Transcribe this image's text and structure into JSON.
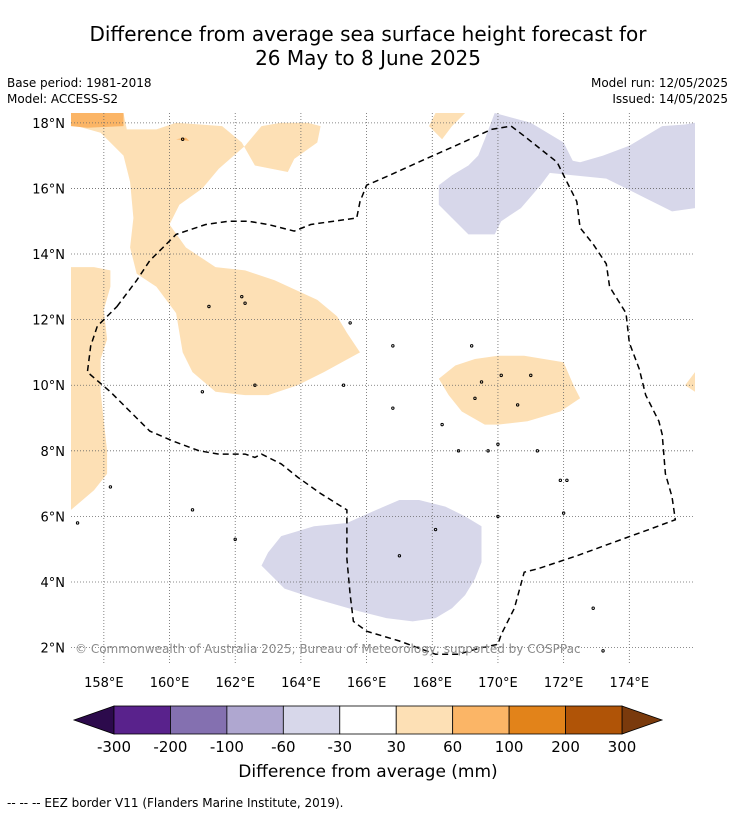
{
  "title_line1": "Difference from average sea surface height forecast for",
  "title_line2": "26 May to 8 June 2025",
  "base_period": "Base period: 1981-2018",
  "model": "Model: ACCESS-S2",
  "model_run": "Model run: 12/05/2025",
  "issued": "Issued: 14/05/2025",
  "copyright": "© Commonwealth of Australia 2025, Bureau of Meteorology; supported by COSPPac",
  "footnote": "--  --  -- EEZ border V11 (Flanders Marine Institute, 2019).",
  "colorbar_label": "Difference from average (mm)",
  "chart_data": {
    "type": "heatmap",
    "xlim": [
      157.0,
      176.0
    ],
    "ylim": [
      1.5,
      18.3
    ],
    "x_ticks": [
      158,
      160,
      162,
      164,
      166,
      168,
      170,
      172,
      174
    ],
    "x_tick_labels": [
      "158°E",
      "160°E",
      "162°E",
      "164°E",
      "166°E",
      "168°E",
      "170°E",
      "172°E",
      "174°E"
    ],
    "y_ticks": [
      2,
      4,
      6,
      8,
      10,
      12,
      14,
      16,
      18
    ],
    "y_tick_labels": [
      "2°N",
      "4°N",
      "6°N",
      "8°N",
      "10°N",
      "12°N",
      "14°N",
      "16°N",
      "18°N"
    ],
    "grid": true,
    "colorbar": {
      "tick_labels": [
        "-300",
        "-200",
        "-100",
        "-60",
        "-30",
        "30",
        "60",
        "100",
        "200",
        "300"
      ],
      "colors": [
        "#59228c",
        "#8470b0",
        "#afa7d0",
        "#d7d7ea",
        "#ffffff",
        "#fde0b5",
        "#fbb566",
        "#e2831a",
        "#b05407"
      ],
      "under_color": "#2c0a4c",
      "over_color": "#7a3a0c"
    },
    "regions": [
      {
        "category": "30 to 60",
        "color": "#fde0b5",
        "points": [
          [
            157.0,
            17.95
          ],
          [
            157.9,
            17.7
          ],
          [
            158.6,
            17.0
          ],
          [
            158.8,
            16.2
          ],
          [
            158.9,
            15.1
          ],
          [
            158.8,
            14.2
          ],
          [
            159.0,
            13.4
          ],
          [
            159.6,
            13.0
          ],
          [
            160.2,
            12.2
          ],
          [
            160.4,
            11.0
          ],
          [
            160.7,
            10.4
          ],
          [
            161.4,
            9.8
          ],
          [
            162.3,
            9.7
          ],
          [
            163.0,
            9.7
          ],
          [
            163.9,
            10.0
          ],
          [
            164.7,
            10.4
          ],
          [
            165.8,
            11.0
          ],
          [
            165.4,
            11.6
          ],
          [
            165.1,
            12.1
          ],
          [
            164.5,
            12.6
          ],
          [
            163.2,
            13.2
          ],
          [
            162.3,
            13.5
          ],
          [
            161.4,
            13.6
          ],
          [
            160.5,
            14.2
          ],
          [
            160.0,
            14.9
          ],
          [
            160.3,
            15.5
          ],
          [
            161.0,
            16.0
          ],
          [
            161.5,
            16.6
          ],
          [
            162.3,
            17.3
          ],
          [
            162.8,
            17.9
          ],
          [
            163.4,
            18.0
          ],
          [
            164.2,
            18.0
          ],
          [
            164.6,
            17.9
          ],
          [
            164.5,
            17.4
          ],
          [
            163.8,
            16.9
          ],
          [
            163.6,
            16.5
          ],
          [
            162.6,
            16.7
          ],
          [
            162.2,
            17.4
          ],
          [
            161.6,
            17.9
          ],
          [
            160.2,
            18.0
          ],
          [
            159.6,
            17.8
          ],
          [
            158.7,
            17.8
          ],
          [
            158.6,
            18.3
          ],
          [
            157.0,
            18.3
          ]
        ]
      },
      {
        "category": "30 to 60",
        "color": "#fde0b5",
        "points": [
          [
            157.0,
            13.6
          ],
          [
            157.7,
            13.6
          ],
          [
            158.2,
            13.5
          ],
          [
            158.2,
            13.0
          ],
          [
            158.0,
            12.3
          ],
          [
            158.1,
            11.4
          ],
          [
            157.9,
            10.8
          ],
          [
            157.9,
            9.8
          ],
          [
            158.0,
            8.9
          ],
          [
            158.1,
            8.0
          ],
          [
            158.1,
            7.3
          ],
          [
            157.7,
            6.8
          ],
          [
            157.0,
            6.2
          ]
        ]
      },
      {
        "category": "30 to 60",
        "color": "#fde0b5",
        "points": [
          [
            168.2,
            10.2
          ],
          [
            168.7,
            10.6
          ],
          [
            169.3,
            10.8
          ],
          [
            170.0,
            10.9
          ],
          [
            170.8,
            10.9
          ],
          [
            172.0,
            10.7
          ],
          [
            172.3,
            10.0
          ],
          [
            172.5,
            9.6
          ],
          [
            171.9,
            9.2
          ],
          [
            170.9,
            8.9
          ],
          [
            170.0,
            8.8
          ],
          [
            169.6,
            8.8
          ],
          [
            168.9,
            9.2
          ],
          [
            168.5,
            9.7
          ],
          [
            168.2,
            10.2
          ]
        ]
      },
      {
        "category": "30 to 60",
        "color": "#fde0b5",
        "points": [
          [
            168.1,
            18.3
          ],
          [
            169.0,
            18.3
          ],
          [
            168.6,
            17.9
          ],
          [
            168.3,
            17.5
          ],
          [
            167.9,
            17.9
          ],
          [
            168.1,
            18.3
          ]
        ]
      },
      {
        "category": "30 to 60",
        "color": "#fde0b5",
        "points": [
          [
            176.0,
            10.4
          ],
          [
            176.0,
            9.8
          ],
          [
            175.7,
            10.0
          ],
          [
            176.0,
            10.4
          ]
        ]
      },
      {
        "category": "60 to 100",
        "color": "#fbb566",
        "points": [
          [
            157.0,
            18.3
          ],
          [
            158.6,
            18.3
          ],
          [
            158.6,
            17.9
          ],
          [
            157.5,
            17.85
          ],
          [
            157.0,
            17.9
          ]
        ]
      },
      {
        "category": "60 to 100",
        "color": "#fbb566",
        "points": [
          [
            160.2,
            17.5
          ],
          [
            160.6,
            17.45
          ],
          [
            160.5,
            17.55
          ],
          [
            160.2,
            17.5
          ]
        ]
      },
      {
        "category": "-60 to -30",
        "color": "#d7d7ea",
        "points": [
          [
            169.9,
            18.3
          ],
          [
            176.0,
            18.3
          ],
          [
            176.0,
            18.0
          ],
          [
            175.7,
            17.95
          ],
          [
            175.0,
            17.9
          ],
          [
            174.0,
            17.3
          ],
          [
            173.2,
            17.0
          ],
          [
            172.5,
            16.8
          ],
          [
            172.0,
            16.9
          ],
          [
            171.5,
            17.2
          ],
          [
            170.9,
            16.8
          ],
          [
            171.3,
            16.5
          ],
          [
            173.3,
            16.3
          ],
          [
            173.9,
            16.0
          ],
          [
            174.5,
            15.7
          ],
          [
            175.3,
            15.3
          ],
          [
            176.0,
            15.4
          ],
          [
            176.0,
            18.3
          ]
        ]
      },
      {
        "category": "-60 to -30",
        "color": "#d7d7ea",
        "points": [
          [
            169.9,
            18.3
          ],
          [
            169.6,
            17.5
          ],
          [
            169.4,
            17.0
          ],
          [
            169.1,
            16.7
          ],
          [
            168.6,
            16.4
          ],
          [
            168.2,
            16.1
          ],
          [
            168.2,
            15.5
          ],
          [
            168.6,
            15.1
          ],
          [
            169.1,
            14.6
          ],
          [
            169.9,
            14.6
          ],
          [
            170.1,
            15.0
          ],
          [
            170.7,
            15.4
          ],
          [
            171.3,
            16.1
          ],
          [
            171.6,
            16.5
          ],
          [
            172.3,
            16.8
          ],
          [
            172.0,
            17.4
          ],
          [
            171.0,
            18.0
          ],
          [
            169.9,
            18.3
          ]
        ]
      },
      {
        "category": "-60 to -30",
        "color": "#d7d7ea",
        "points": [
          [
            163.4,
            5.4
          ],
          [
            164.4,
            5.7
          ],
          [
            165.4,
            5.8
          ],
          [
            166.3,
            6.2
          ],
          [
            167.0,
            6.5
          ],
          [
            167.6,
            6.5
          ],
          [
            168.4,
            6.3
          ],
          [
            169.0,
            6.0
          ],
          [
            169.5,
            5.7
          ],
          [
            169.5,
            4.6
          ],
          [
            169.3,
            4.1
          ],
          [
            169.0,
            3.6
          ],
          [
            168.6,
            3.2
          ],
          [
            168.1,
            2.9
          ],
          [
            167.4,
            2.8
          ],
          [
            166.6,
            2.9
          ],
          [
            165.8,
            3.1
          ],
          [
            164.4,
            3.5
          ],
          [
            163.5,
            3.8
          ],
          [
            163.1,
            4.2
          ],
          [
            162.8,
            4.5
          ],
          [
            163.0,
            4.9
          ],
          [
            163.4,
            5.4
          ]
        ]
      }
    ],
    "eez_border": [
      [
        158.4,
        12.4
      ],
      [
        159.0,
        13.2
      ],
      [
        159.4,
        13.8
      ],
      [
        159.8,
        14.2
      ],
      [
        160.2,
        14.6
      ],
      [
        161.1,
        14.9
      ],
      [
        161.8,
        15.0
      ],
      [
        162.4,
        15.0
      ],
      [
        163.0,
        14.9
      ],
      [
        163.8,
        14.7
      ],
      [
        164.3,
        14.9
      ],
      [
        165.0,
        15.0
      ],
      [
        165.7,
        15.1
      ],
      [
        165.8,
        15.6
      ],
      [
        166.0,
        16.1
      ],
      [
        166.7,
        16.4
      ],
      [
        167.8,
        16.9
      ],
      [
        168.7,
        17.3
      ],
      [
        169.8,
        17.8
      ],
      [
        170.4,
        17.9
      ],
      [
        170.8,
        17.6
      ],
      [
        171.3,
        17.2
      ],
      [
        171.8,
        16.8
      ],
      [
        172.1,
        16.2
      ],
      [
        172.4,
        15.6
      ],
      [
        172.5,
        14.8
      ],
      [
        172.9,
        14.3
      ],
      [
        173.3,
        13.7
      ],
      [
        173.4,
        13.0
      ],
      [
        173.9,
        12.2
      ],
      [
        174.0,
        11.3
      ],
      [
        174.3,
        10.5
      ],
      [
        174.5,
        9.7
      ],
      [
        174.9,
        8.9
      ],
      [
        175.0,
        8.5
      ],
      [
        175.1,
        7.3
      ],
      [
        175.3,
        6.6
      ],
      [
        175.4,
        5.9
      ],
      [
        174.6,
        5.6
      ],
      [
        173.5,
        5.2
      ],
      [
        172.4,
        4.8
      ],
      [
        171.2,
        4.4
      ],
      [
        170.8,
        4.3
      ],
      [
        170.5,
        3.2
      ],
      [
        170.1,
        2.4
      ],
      [
        170.0,
        2.1
      ],
      [
        169.5,
        2.0
      ],
      [
        168.8,
        1.8
      ],
      [
        168.1,
        1.8
      ],
      [
        167.0,
        2.2
      ],
      [
        166.0,
        2.5
      ],
      [
        165.6,
        2.8
      ],
      [
        165.5,
        3.6
      ],
      [
        165.4,
        4.7
      ],
      [
        165.4,
        6.2
      ],
      [
        164.6,
        6.7
      ],
      [
        163.9,
        7.2
      ],
      [
        163.4,
        7.6
      ],
      [
        162.8,
        7.9
      ],
      [
        162.6,
        7.8
      ],
      [
        162.3,
        7.9
      ],
      [
        161.5,
        7.9
      ],
      [
        160.9,
        8.0
      ],
      [
        160.1,
        8.3
      ],
      [
        159.4,
        8.6
      ],
      [
        158.8,
        9.2
      ],
      [
        158.2,
        9.8
      ],
      [
        157.5,
        10.4
      ],
      [
        157.6,
        11.2
      ],
      [
        157.8,
        11.8
      ],
      [
        158.4,
        12.4
      ]
    ],
    "islands": [
      [
        160.4,
        17.5
      ],
      [
        161.2,
        12.4
      ],
      [
        162.3,
        12.5
      ],
      [
        165.5,
        11.9
      ],
      [
        166.8,
        11.2
      ],
      [
        169.2,
        11.2
      ],
      [
        165.3,
        10.0
      ],
      [
        166.8,
        9.3
      ],
      [
        169.3,
        9.6
      ],
      [
        168.3,
        8.8
      ],
      [
        168.8,
        8.0
      ],
      [
        169.7,
        8.0
      ],
      [
        170.0,
        8.2
      ],
      [
        170.6,
        9.4
      ],
      [
        171.0,
        10.3
      ],
      [
        171.2,
        8.0
      ],
      [
        171.9,
        7.1
      ],
      [
        172.1,
        7.1
      ],
      [
        172.0,
        6.1
      ],
      [
        170.0,
        6.0
      ],
      [
        168.1,
        5.6
      ],
      [
        158.2,
        6.9
      ],
      [
        160.7,
        6.2
      ],
      [
        162.0,
        5.3
      ],
      [
        167.0,
        4.8
      ],
      [
        172.9,
        3.2
      ],
      [
        173.2,
        1.9
      ],
      [
        157.2,
        5.8
      ],
      [
        162.6,
        10.0
      ],
      [
        161.0,
        9.8
      ],
      [
        162.2,
        12.7
      ],
      [
        169.5,
        10.1
      ],
      [
        170.1,
        10.3
      ]
    ]
  }
}
